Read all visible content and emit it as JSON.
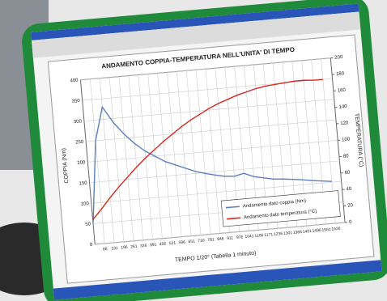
{
  "chart_data": {
    "type": "line",
    "title": "ANDAMENTO COPPIA-TEMPERATURA NELL'UNITA' DI TEMPO",
    "x_label": "TEMPO 1/20° (Tabella 1 minuto)",
    "y_label": "COPPIA (Nm)",
    "y2_label": "TEMPERATURA (°C)",
    "x": [
      1,
      66,
      131,
      196,
      261,
      326,
      391,
      456,
      521,
      586,
      651,
      716,
      781,
      846,
      911,
      976,
      1041,
      1106,
      1171,
      1236,
      1301,
      1366,
      1431,
      1496,
      1561,
      1626
    ],
    "xlim": [
      1,
      1690
    ],
    "xticks": [
      66,
      131,
      196,
      261,
      326,
      391,
      456,
      521,
      586,
      651,
      716,
      781,
      846,
      911,
      976,
      1041,
      1106,
      1171,
      1236,
      1301,
      1366,
      1431,
      1496,
      1561,
      1626
    ],
    "ylim": [
      0,
      400
    ],
    "yticks": [
      0,
      50,
      100,
      150,
      200,
      250,
      300,
      350,
      400
    ],
    "y2lim": [
      0,
      200
    ],
    "y2ticks": [
      0,
      20,
      40,
      60,
      80,
      100,
      120,
      140,
      160,
      180,
      200
    ],
    "grid": true,
    "legend": "bottom-right",
    "series": [
      {
        "name": "Andamento dato coppia (Nm)",
        "color": "#5a7fc0",
        "values": [
          50,
          250,
          330,
          290,
          260,
          235,
          215,
          200,
          185,
          175,
          165,
          155,
          148,
          142,
          137,
          135,
          140,
          130,
          125,
          120,
          118,
          115,
          112,
          108,
          105,
          102
        ]
      },
      {
        "name": "Andamento dato temperatura (°C)",
        "color": "#d7261e",
        "axis": "y2",
        "values": [
          30,
          42,
          55,
          67,
          78,
          89,
          99,
          108,
          117,
          125,
          133,
          140,
          146,
          152,
          157,
          161,
          165,
          168,
          171,
          173,
          174,
          175,
          176,
          176,
          175,
          175
        ]
      }
    ]
  }
}
